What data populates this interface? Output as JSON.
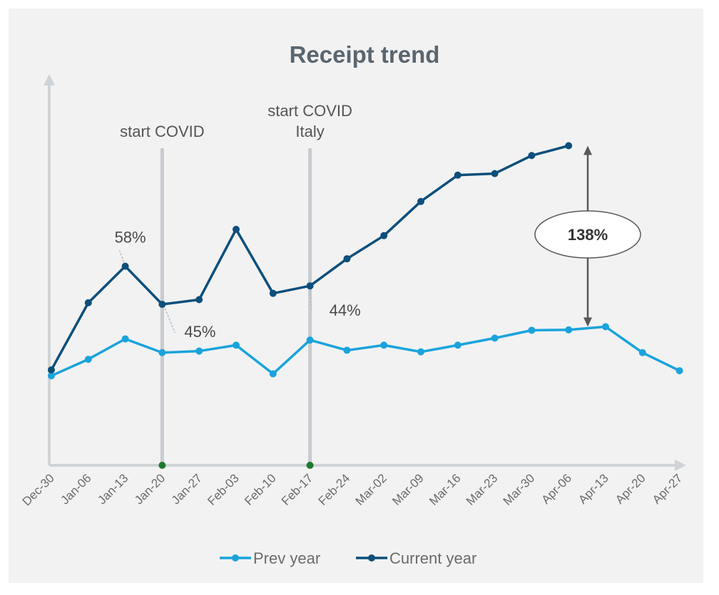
{
  "chart_data": {
    "type": "line",
    "title": "Receipt trend",
    "xlabel": "",
    "ylabel": "",
    "ylim": [
      0,
      100
    ],
    "grid": false,
    "legend_position": "bottom",
    "categories": [
      "Dec-30",
      "Jan-06",
      "Jan-13",
      "Jan-20",
      "Jan-27",
      "Feb-03",
      "Feb-10",
      "Feb-17",
      "Feb-24",
      "Mar-02",
      "Mar-09",
      "Mar-16",
      "Mar-23",
      "Mar-30",
      "Apr-06",
      "Apr-13",
      "Apr-20",
      "Apr-27"
    ],
    "series": [
      {
        "name": "Prev year",
        "color": "#1aa3dc",
        "values": [
          22.8,
          27.0,
          32.2,
          28.7,
          29.1,
          30.6,
          23.3,
          31.9,
          29.3,
          30.6,
          28.9,
          30.6,
          32.4,
          34.4,
          34.5,
          35.3,
          28.7,
          24.1
        ]
      },
      {
        "name": "Current year",
        "color": "#0d4f7c",
        "values": [
          24.3,
          41.4,
          50.7,
          41.0,
          42.2,
          60.1,
          43.8,
          45.7,
          52.6,
          58.5,
          67.2,
          73.9,
          74.3,
          78.9,
          81.4,
          null,
          null,
          null
        ]
      }
    ],
    "annotations": {
      "vlines": [
        {
          "category": "Jan-20",
          "label_lines": [
            "start COVID"
          ]
        },
        {
          "category": "Feb-17",
          "label_lines": [
            "start COVID",
            "Italy"
          ]
        }
      ],
      "point_labels": [
        {
          "category": "Jan-13",
          "text": "58%"
        },
        {
          "category": "Jan-20",
          "text": "45%"
        },
        {
          "category": "Feb-17",
          "text": "44%"
        }
      ],
      "gap": {
        "category": "Apr-06",
        "text": "138%"
      }
    }
  }
}
